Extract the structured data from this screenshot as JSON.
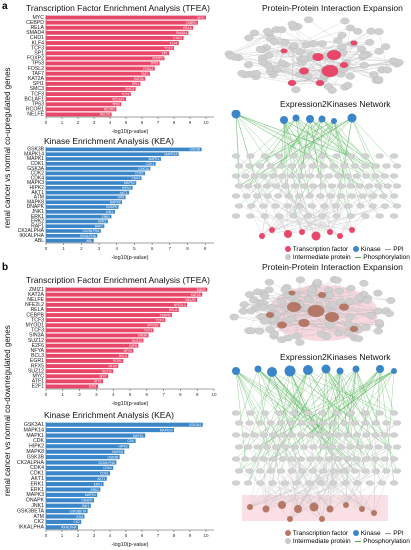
{
  "panels": {
    "a": {
      "letter": "a",
      "side_label": "renal cancer vs normal co-upregulated genes",
      "tfea_title": "Transcription Factor Enrichment Analysis (TFEA)",
      "kea_title": "Kinase Enrichment Analysis (KEA)",
      "ppi_title": "Protein-Protein Interaction Expansion",
      "x2k_title": "Expression2Kinases Network"
    },
    "b": {
      "letter": "b",
      "side_label": "renal cancer vs normal co-downregulated genes",
      "tfea_title": "Transcription Factor Enrichment Analysis (TFEA)",
      "kea_title": "Kinase Enrichment Analysis (KEA)",
      "ppi_title": "Protein-Protein Interaction Expansion",
      "x2k_title": "Expression2Kinases Network"
    }
  },
  "xlabel": "-log10(p-value)",
  "legend": {
    "transcription_factor": "Transcription factor",
    "kinase": "Kinase",
    "ppi": "PPI",
    "intermediate": "Intermediate protein",
    "phosphorylation": "Phosphorylation"
  },
  "colors": {
    "tf": "#e8476a",
    "kinase": "#3a86c8",
    "intermediate": "#c9c9c9",
    "ppi_edge": "#bdbdbd",
    "phospho_edge": "#4caf50",
    "tf_b": "#b57766"
  },
  "chart_data": [
    {
      "type": "bar",
      "orientation": "horizontal",
      "title": "Transcription Factor Enrichment Analysis (TFEA)",
      "xlabel": "-log10(p-value)",
      "color": "#e8476a",
      "categories": [
        "MYC",
        "CEBPD",
        "RELA",
        "SMAD4",
        "CHD1",
        "KLF4",
        "TCF3",
        "SP1",
        "FOXP2",
        "TP53",
        "FOSL2",
        "TAF7",
        "KAT2A",
        "SPI1",
        "SMC3",
        "TCF3",
        "BCLAF1",
        "TP63",
        "RCOR1",
        "NELFE"
      ],
      "values": [
        10.0,
        9.5,
        9.2,
        8.9,
        8.6,
        8.3,
        8.0,
        7.7,
        7.4,
        7.1,
        6.8,
        6.5,
        6.2,
        5.9,
        5.6,
        5.3,
        5.0,
        4.7,
        4.4,
        4.1
      ],
      "xlim": [
        0,
        10.5
      ]
    },
    {
      "type": "bar",
      "orientation": "horizontal",
      "title": "Kinase Enrichment Analysis (KEA)",
      "xlabel": "-log10(p-value)",
      "color": "#3a86c8",
      "categories": [
        "GSK3B",
        "MAPK14",
        "MAPK1",
        "CDK1",
        "GSK3A",
        "CDK2",
        "CDK4",
        "MAPK3",
        "HIPK2",
        "AKT1",
        "ATM",
        "MAPK8",
        "DNAPK",
        "JNK1",
        "ERK1",
        "ERK2",
        "RAF1",
        "CK2ALPHA",
        "IKKALPHA",
        "ABL"
      ],
      "values": [
        8.8,
        7.5,
        6.5,
        6.2,
        5.9,
        5.6,
        5.4,
        5.1,
        4.9,
        4.7,
        4.5,
        4.3,
        4.1,
        3.9,
        3.7,
        3.5,
        3.3,
        3.1,
        2.9,
        2.7
      ],
      "xlim": [
        0,
        9.5
      ]
    },
    {
      "type": "bar",
      "orientation": "horizontal",
      "title": "Transcription Factor Enrichment Analysis (TFEA)",
      "xlabel": "-log10(p-value)",
      "color": "#e8476a",
      "categories": [
        "ZMIZ1",
        "KAT2A",
        "NELFE",
        "NFE2L2",
        "RELA",
        "CEBPB",
        "TCF3",
        "MYOD1",
        "TCF3",
        "SIN3A",
        "SUZ12",
        "E2F6",
        "NFYA",
        "BCL3",
        "EGR1",
        "RFX5",
        "SUZ12",
        "MYC",
        "ATF1",
        "E2F1"
      ],
      "values": [
        9.6,
        9.3,
        9.0,
        8.4,
        7.9,
        7.5,
        7.1,
        6.8,
        6.4,
        6.1,
        5.8,
        5.5,
        5.2,
        4.9,
        4.6,
        4.3,
        4.0,
        3.7,
        3.4,
        3.1
      ],
      "xlim": [
        0,
        10
      ]
    },
    {
      "type": "bar",
      "orientation": "horizontal",
      "title": "Kinase Enrichment Analysis (KEA)",
      "xlabel": "-log10(p-value)",
      "color": "#3a86c8",
      "categories": [
        "GSK3A1",
        "MAPK14",
        "MAPK1",
        "CDK",
        "HIPK2",
        "MAPK8",
        "GSK3B",
        "CK2ALPHA",
        "CDK4",
        "CDK1",
        "AKT1",
        "ERK1",
        "ERK1",
        "MAPK3",
        "DNAPK",
        "JNK1",
        "GSK3BETA",
        "ATM",
        "CK2",
        "IKKALPHA"
      ],
      "values": [
        9.8,
        8.0,
        6.2,
        5.6,
        5.2,
        4.9,
        4.6,
        4.4,
        4.2,
        4.0,
        3.8,
        3.6,
        3.4,
        3.2,
        3.0,
        2.8,
        2.6,
        2.4,
        2.2,
        2.0
      ],
      "xlim": [
        0,
        10.5
      ]
    }
  ]
}
